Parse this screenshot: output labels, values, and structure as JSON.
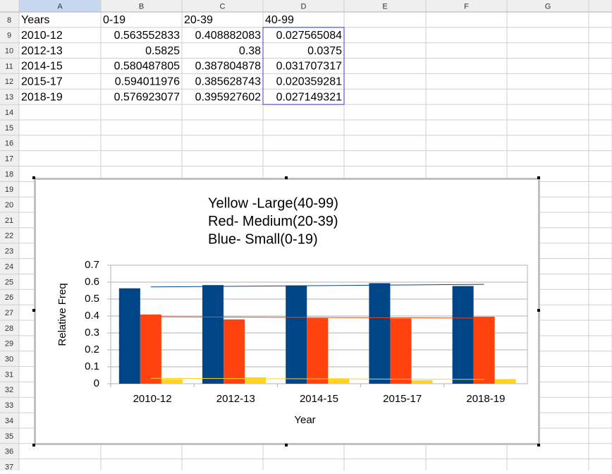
{
  "sheet": {
    "columns": [
      "A",
      "B",
      "C",
      "D",
      "E",
      "F",
      "G"
    ],
    "rows": [
      8,
      9,
      10,
      11,
      12,
      13,
      14,
      15,
      16,
      17,
      18,
      19,
      20,
      21,
      22,
      23,
      24,
      25,
      26,
      27,
      28,
      29,
      30,
      31,
      32,
      33,
      34,
      35,
      36,
      37
    ],
    "cells": [
      [
        "Years",
        "0-19",
        "20-39",
        "40-99"
      ],
      [
        "2010-12",
        0.563552833,
        0.408882083,
        0.027565084
      ],
      [
        "2012-13",
        0.5825,
        0.38,
        0.0375
      ],
      [
        "2014-15",
        0.580487805,
        0.387804878,
        0.031707317
      ],
      [
        "2015-17",
        0.594011976,
        0.385628743,
        0.020359281
      ],
      [
        "2018-19",
        0.576923077,
        0.395927602,
        0.027149321
      ]
    ]
  },
  "chart_data": {
    "type": "bar",
    "title": [
      "Yellow -Large(40-99)",
      "Red- Medium(20-39)",
      "Blue- Small(0-19)"
    ],
    "ylabel": "Relative Freq",
    "xlabel": "Year",
    "categories": [
      "2010-12",
      "2012-13",
      "2014-15",
      "2015-17",
      "2018-19"
    ],
    "series": [
      {
        "color": "#004586",
        "values": [
          0.563552833,
          0.5825,
          0.580487805,
          0.594011976,
          0.576923077
        ]
      },
      {
        "color": "#ff420e",
        "values": [
          0.408882083,
          0.38,
          0.387804878,
          0.385628743,
          0.395927602
        ]
      },
      {
        "color": "#ffd320",
        "values": [
          0.027565084,
          0.0375,
          0.031707317,
          0.020359281,
          0.027149321
        ]
      }
    ],
    "ylim": [
      0,
      0.7
    ],
    "yticks": [
      0,
      0.1,
      0.2,
      0.3,
      0.4,
      0.5,
      0.6,
      0.7
    ],
    "grid": true,
    "trendline": true
  }
}
